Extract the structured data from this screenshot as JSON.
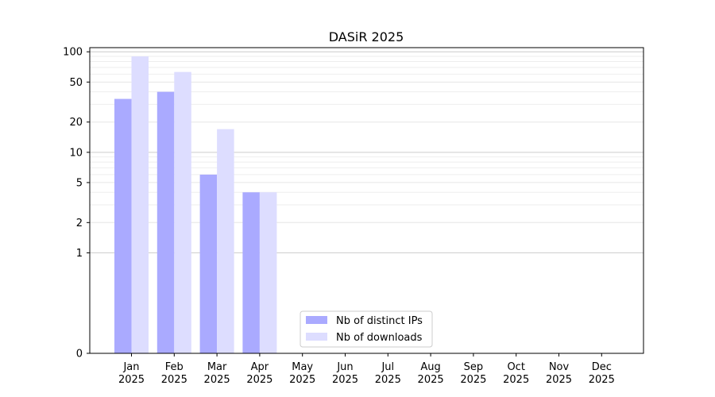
{
  "chart_data": {
    "type": "bar",
    "title": "DASiR 2025",
    "xlabel": "",
    "ylabel": "",
    "yscale": "symlog",
    "ylim": [
      0,
      110
    ],
    "yticks": [
      0,
      1,
      2,
      5,
      10,
      20,
      50,
      100
    ],
    "grid": true,
    "legend_position": "bottom-center",
    "categories": [
      [
        "Jan",
        "2025"
      ],
      [
        "Feb",
        "2025"
      ],
      [
        "Mar",
        "2025"
      ],
      [
        "Apr",
        "2025"
      ],
      [
        "May",
        "2025"
      ],
      [
        "Jun",
        "2025"
      ],
      [
        "Jul",
        "2025"
      ],
      [
        "Aug",
        "2025"
      ],
      [
        "Sep",
        "2025"
      ],
      [
        "Oct",
        "2025"
      ],
      [
        "Nov",
        "2025"
      ],
      [
        "Dec",
        "2025"
      ]
    ],
    "series": [
      {
        "name": "Nb of distinct IPs",
        "color": "#aaaaff",
        "values": [
          34,
          40,
          6,
          4,
          0,
          0,
          0,
          0,
          0,
          0,
          0,
          0
        ]
      },
      {
        "name": "Nb of downloads",
        "color": "#ddddff",
        "values": [
          90,
          63,
          17,
          4,
          0,
          0,
          0,
          0,
          0,
          0,
          0,
          0
        ]
      }
    ]
  }
}
